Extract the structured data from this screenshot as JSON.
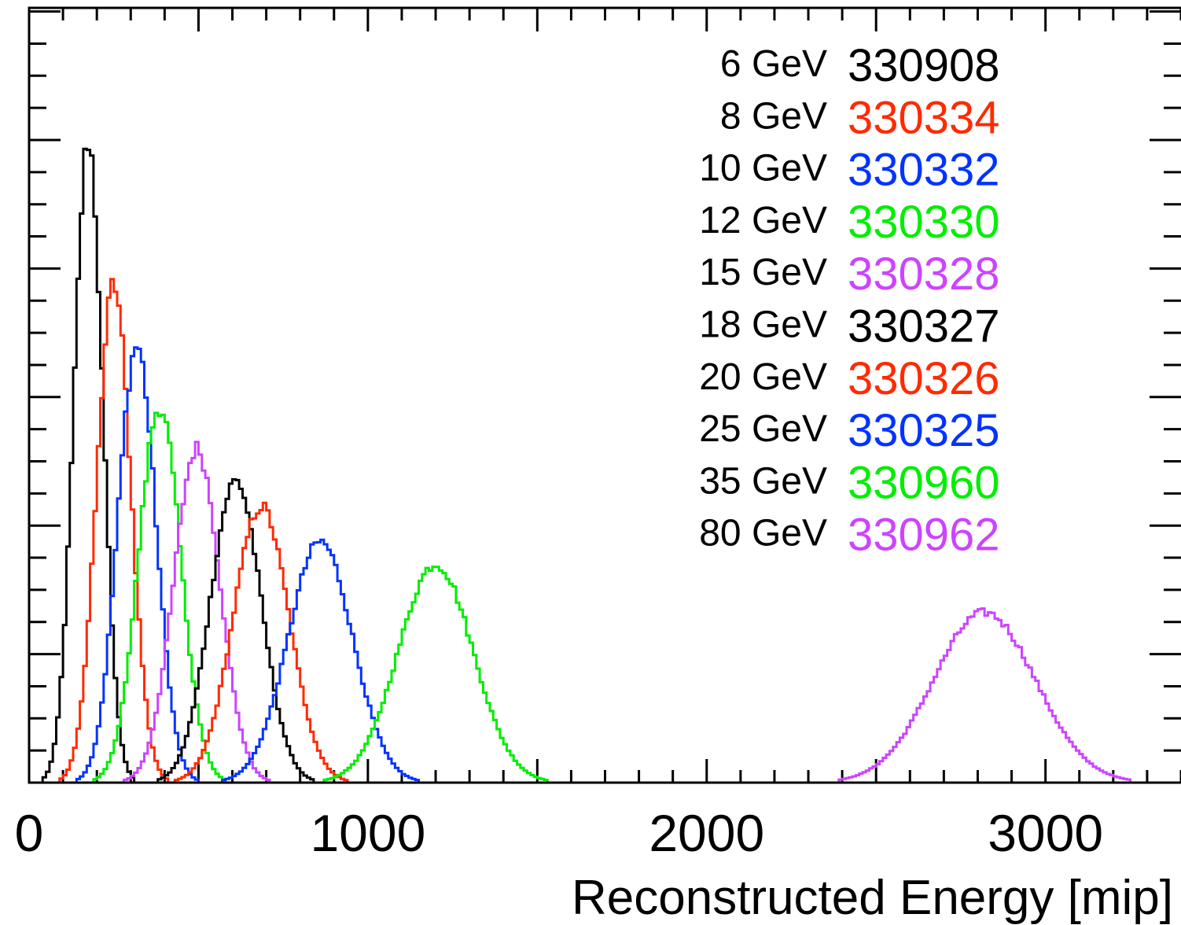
{
  "chart_data": {
    "type": "line",
    "xlabel": "Reconstructed Energy [mip]",
    "ylabel": "",
    "xlim": [
      0,
      3400
    ],
    "ylim": [
      0,
      1
    ],
    "x_ticks": [
      "0",
      "1000",
      "2000",
      "3000"
    ],
    "x_tick_values": [
      0,
      1000,
      2000,
      3000
    ],
    "legend_position": "top-right",
    "grid": false,
    "series": [
      {
        "name": "330908",
        "energy_label": "6 GeV",
        "color": "#000000",
        "peak_x": 175,
        "peak_y": 1.0,
        "sigma": 42
      },
      {
        "name": "330334",
        "energy_label": "8 GeV",
        "color": "#ff2a00",
        "peak_x": 250,
        "peak_y": 0.775,
        "sigma": 50
      },
      {
        "name": "330332",
        "energy_label": "10 GeV",
        "color": "#0033ff",
        "peak_x": 318,
        "peak_y": 0.68,
        "sigma": 56
      },
      {
        "name": "330330",
        "energy_label": "12 GeV",
        "color": "#00ee00",
        "peak_x": 385,
        "peak_y": 0.585,
        "sigma": 62
      },
      {
        "name": "330328",
        "energy_label": "15 GeV",
        "color": "#cc44ff",
        "peak_x": 495,
        "peak_y": 0.52,
        "sigma": 68
      },
      {
        "name": "330327",
        "energy_label": "18 GeV",
        "color": "#000000",
        "peak_x": 610,
        "peak_y": 0.47,
        "sigma": 75
      },
      {
        "name": "330326",
        "energy_label": "20 GeV",
        "color": "#ff2a00",
        "peak_x": 685,
        "peak_y": 0.43,
        "sigma": 82
      },
      {
        "name": "330325",
        "energy_label": "25 GeV",
        "color": "#0033ff",
        "peak_x": 860,
        "peak_y": 0.375,
        "sigma": 95
      },
      {
        "name": "330960",
        "energy_label": "35 GeV",
        "color": "#00ee00",
        "peak_x": 1200,
        "peak_y": 0.34,
        "sigma": 110
      },
      {
        "name": "330962",
        "energy_label": "80 GeV",
        "color": "#cc44ff",
        "peak_x": 2820,
        "peak_y": 0.265,
        "sigma": 150
      }
    ]
  }
}
